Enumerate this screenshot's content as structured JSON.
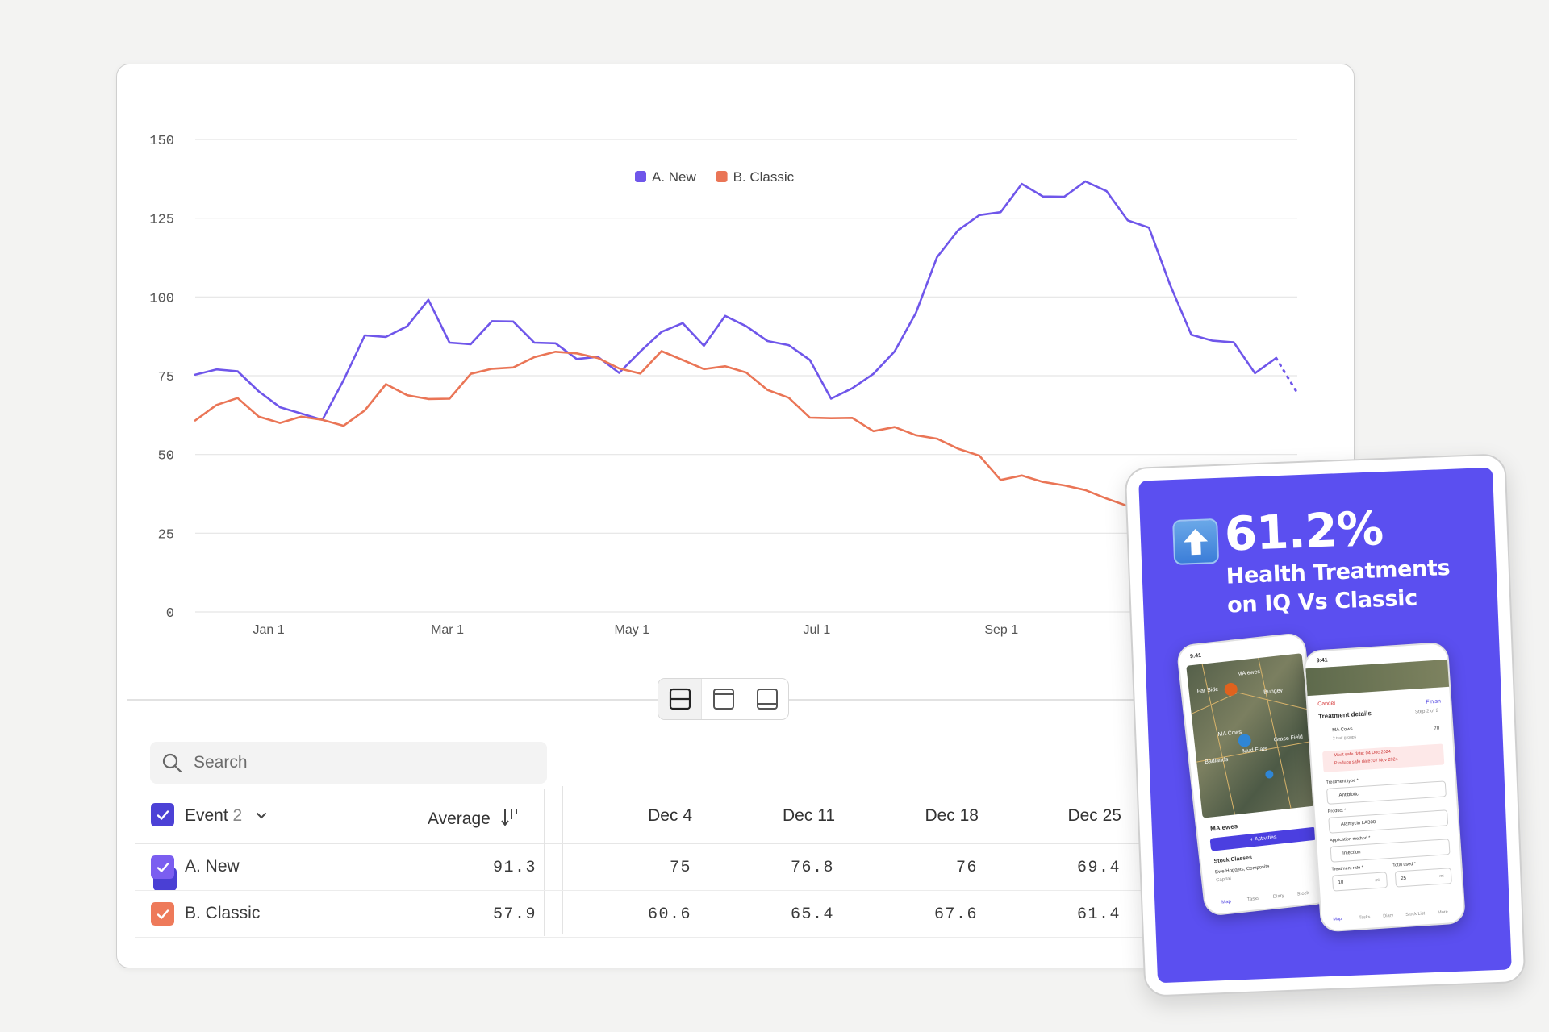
{
  "chart_data": {
    "type": "line",
    "ylim": [
      0,
      150
    ],
    "yticks": [
      0,
      25,
      50,
      75,
      100,
      125,
      150
    ],
    "xtick_labels": [
      "Jan 1",
      "Mar 1",
      "May 1",
      "Jul 1",
      "Sep 1"
    ],
    "xtick_positions": [
      4,
      12.43,
      21.14,
      29.86,
      38.57
    ],
    "grid": true,
    "legend_position": "top-center",
    "series": [
      {
        "name": "A. New",
        "color": "#6f56ea",
        "values": [
          75.3,
          77,
          76.4,
          70,
          65,
          63,
          61,
          73.6,
          87.8,
          87.3,
          90.7,
          99.1,
          85.5,
          85,
          92.3,
          92.2,
          85.5,
          85.3,
          80.3,
          81,
          75.9,
          82.7,
          88.9,
          91.7,
          84.5,
          94,
          90.7,
          86,
          84.7,
          80,
          67.7,
          71,
          75.6,
          82.7,
          94.9,
          112.6,
          121.2,
          126,
          126.9,
          135.9,
          131.9,
          131.8,
          136.7,
          133.6,
          124.3,
          122,
          103.8,
          88,
          86.1,
          85.6,
          75.8,
          80.6
        ],
        "projected_end": 69.5
      },
      {
        "name": "B. Classic",
        "color": "#ea7556",
        "values": [
          60.8,
          65.7,
          67.9,
          62,
          60,
          62,
          61,
          59.1,
          64,
          72.3,
          68.8,
          67.6,
          67.7,
          75.6,
          77.2,
          77.6,
          80.9,
          82.6,
          82.1,
          80.6,
          77.3,
          75.7,
          82.8,
          80,
          77.1,
          78,
          76,
          70.5,
          68,
          61.7,
          61.5,
          61.6,
          57.4,
          58.7,
          56.1,
          55,
          51.8,
          49.6,
          41.9,
          43.3,
          41.3,
          40.2,
          38.7,
          36,
          33.6,
          31.5
        ]
      }
    ]
  },
  "toggle": {
    "options": [
      "split-view",
      "chart-view",
      "table-view"
    ],
    "active": "split-view"
  },
  "table": {
    "search_placeholder": "Search",
    "header": {
      "event_label": "Event",
      "event_count": "2",
      "average_label": "Average",
      "dates": [
        "Dec 4",
        "Dec 11",
        "Dec 18",
        "Dec 25"
      ]
    },
    "rows": [
      {
        "name": "A. New",
        "color": "#7b5ef0",
        "average": "91.3",
        "values": [
          "75",
          "76.8",
          "76",
          "69.4"
        ]
      },
      {
        "name": "B. Classic",
        "color": "#ee7a5a",
        "average": "57.9",
        "values": [
          "60.6",
          "65.4",
          "67.6",
          "61.4"
        ]
      }
    ]
  },
  "promo": {
    "percent": "61.2%",
    "line1": "Health Treatments",
    "line2": "on IQ Vs Classic",
    "bg_color": "#5b4ff0",
    "phone_left": {
      "time": "9:41",
      "map_labels": [
        "Far Side",
        "MA ewes",
        "Bungey",
        "MA Cows",
        "Mud Flats",
        "Grace Field",
        "Badlands"
      ],
      "herd_title": "MA ewes",
      "activities_button": "+ Activities",
      "stock_classes_title": "Stock Classes",
      "stock_classes_value": "Ewe Hoggets, Composite",
      "stock_classes_sub": "Capital",
      "nav": [
        "Map",
        "Tasks",
        "Diary",
        "Stock"
      ]
    },
    "phone_right": {
      "time": "9:41",
      "cancel": "Cancel",
      "finish": "Finish",
      "title": "Treatment details",
      "step": "Step 2 of 2",
      "herd": "MA Cows",
      "herd_sub": "2 trait groups",
      "herd_count": "70",
      "warning_meat": "Meat safe date: 04 Dec 2024",
      "warning_produce": "Produce safe date: 07 Nov 2024",
      "treatment_type_label": "Treatment type *",
      "treatment_type_value": "Antibiotic",
      "product_label": "Product *",
      "product_value": "Alamycin LA300",
      "method_label": "Application method *",
      "method_value": "Injection",
      "rate_label": "Treatment rate *",
      "rate_value": "10",
      "rate_unit": "ml",
      "total_label": "Total used *",
      "total_value": "25",
      "total_unit": "ml",
      "nav": [
        "Map",
        "Tasks",
        "Diary",
        "Stock List",
        "More"
      ]
    }
  }
}
